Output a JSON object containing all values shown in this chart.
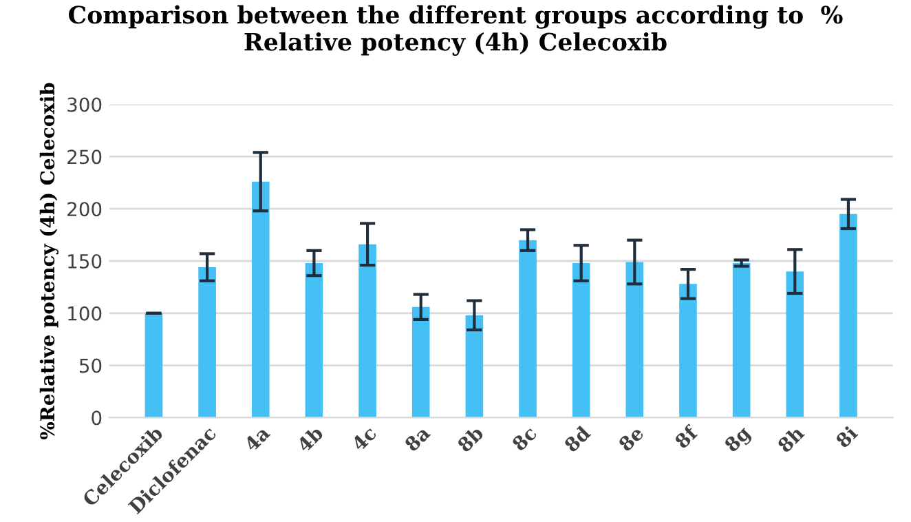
{
  "chart_data": {
    "type": "bar",
    "title": "Comparison between the different groups according to  %\nRelative potency (4h) Celecoxib",
    "ylabel": "%Relative potency (4h) Celecoxib",
    "categories": [
      "Celecoxib",
      "Diclofenac",
      "4a",
      "4b",
      "4c",
      "8a",
      "8b",
      "8c",
      "8d",
      "8e",
      "8f",
      "8g",
      "8h",
      "8i"
    ],
    "values": [
      100,
      144,
      226,
      148,
      166,
      106,
      98,
      170,
      148,
      149,
      128,
      148,
      140,
      195
    ],
    "errors": [
      0,
      13,
      28,
      12,
      20,
      12,
      14,
      10,
      17,
      21,
      14,
      3,
      21,
      14
    ],
    "color": "#45c0f5",
    "ylim": [
      0,
      300
    ],
    "yticks": [
      0,
      50,
      100,
      150,
      200,
      250,
      300
    ],
    "grid": "y"
  }
}
